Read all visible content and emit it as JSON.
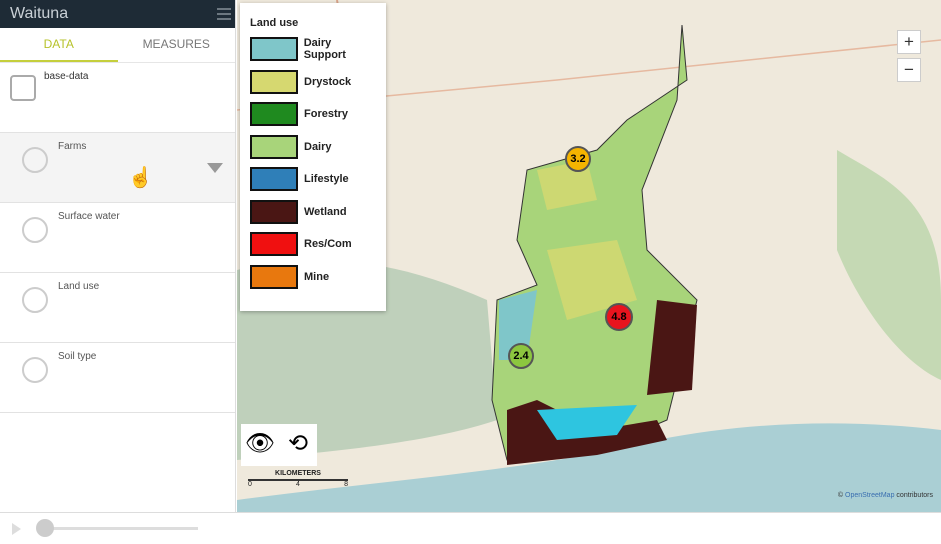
{
  "app": {
    "title": "Waituna"
  },
  "tabs": [
    {
      "label": "DATA",
      "active": true
    },
    {
      "label": "MEASURES",
      "active": false
    }
  ],
  "layers": [
    {
      "label": "base-data",
      "icon": "inbox-icon"
    },
    {
      "label": "Farms",
      "icon": "globe-pin-icon"
    },
    {
      "label": "Surface water",
      "icon": "globe-pin-icon"
    },
    {
      "label": "Land use",
      "icon": "globe-pin-icon"
    },
    {
      "label": "Soil type",
      "icon": "globe-pin-icon"
    }
  ],
  "legend": {
    "title": "Land use",
    "items": [
      {
        "label": "Dairy Support",
        "color": "#7fc6c9"
      },
      {
        "label": "Drystock",
        "color": "#d6d870"
      },
      {
        "label": "Forestry",
        "color": "#1f8a1f"
      },
      {
        "label": "Dairy",
        "color": "#a8d47a"
      },
      {
        "label": "Lifestyle",
        "color": "#2f7fb8"
      },
      {
        "label": "Wetland",
        "color": "#4a1614"
      },
      {
        "label": "Res/Com",
        "color": "#f01010"
      },
      {
        "label": "Mine",
        "color": "#e8780e"
      }
    ]
  },
  "markers": [
    {
      "value": "3.2",
      "color": "#f5b400"
    },
    {
      "value": "4.8",
      "color": "#e8141e"
    },
    {
      "value": "2.4",
      "color": "#8cc63f"
    }
  ],
  "map": {
    "zoom_in": "+",
    "zoom_out": "−",
    "scale_title": "KILOMETERS",
    "scale_ticks": [
      "0",
      "4",
      "8"
    ],
    "attribution_prefix": "©",
    "attribution_link": "OpenStreetMap",
    "attribution_suffix": "contributors"
  }
}
